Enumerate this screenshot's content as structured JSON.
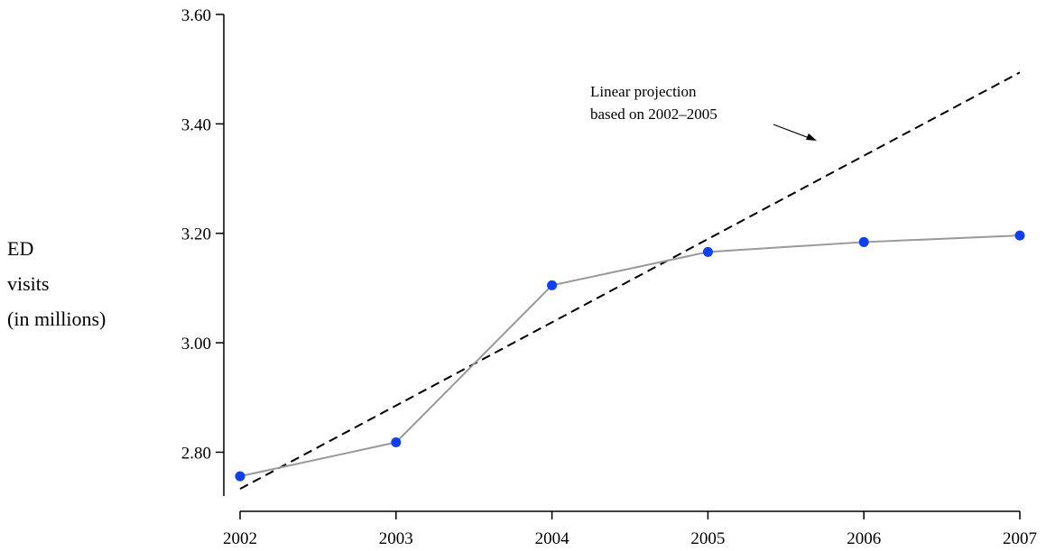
{
  "chart_data": {
    "type": "line",
    "title": "",
    "xlabel": "",
    "ylabel_lines": [
      "ED",
      "visits",
      "(in millions)"
    ],
    "x": [
      2002,
      2003,
      2004,
      2005,
      2006,
      2007
    ],
    "series": [
      {
        "values": [
          2.756,
          2.818,
          3.105,
          3.166,
          3.184,
          3.196
        ],
        "line_color": "#999999",
        "marker_color": "#0f3ff5"
      }
    ],
    "projection": {
      "style": "dashed",
      "color": "#000000",
      "x": [
        2002,
        2007
      ],
      "values": [
        2.733,
        3.494
      ]
    },
    "x_ticks": [
      "2002",
      "2003",
      "2004",
      "2005",
      "2006",
      "2007"
    ],
    "y_ticks": [
      "2.80",
      "3.00",
      "3.20",
      "3.40",
      "3.60"
    ],
    "xlim": [
      2002,
      2007
    ],
    "ylim": [
      2.72,
      3.6
    ],
    "grid": false,
    "legend": "none",
    "annotation": {
      "lines": [
        "Linear projection",
        "based on 2002–2005"
      ],
      "arrow": true
    }
  }
}
